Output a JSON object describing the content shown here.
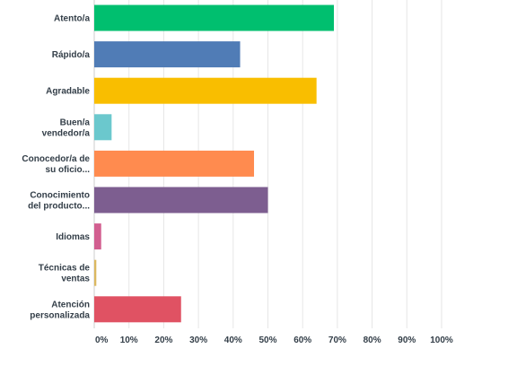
{
  "chart_data": {
    "type": "bar",
    "orientation": "horizontal",
    "categories": [
      [
        "Atento/a"
      ],
      [
        "Rápido/a"
      ],
      [
        "Agradable"
      ],
      [
        "Buen/a",
        "vendedor/a"
      ],
      [
        "Conocedor/a de",
        "su oficio..."
      ],
      [
        "Conocimiento",
        "del producto..."
      ],
      [
        "Idiomas"
      ],
      [
        "Técnicas de",
        "ventas"
      ],
      [
        "Atención",
        "personalizada"
      ]
    ],
    "values": [
      69,
      42,
      64,
      5,
      46,
      50,
      2,
      0.6,
      25
    ],
    "colors": [
      "#00bf6f",
      "#507cb6",
      "#f9be00",
      "#6bc8cd",
      "#ff8b4f",
      "#7d5e90",
      "#d25f90",
      "#dbb860",
      "#e05263"
    ],
    "x_ticks": [
      "0%",
      "10%",
      "20%",
      "30%",
      "40%",
      "50%",
      "60%",
      "70%",
      "80%",
      "90%",
      "100%"
    ],
    "xlim": [
      0,
      100
    ],
    "grid": true,
    "title": "",
    "xlabel": "",
    "ylabel": ""
  }
}
